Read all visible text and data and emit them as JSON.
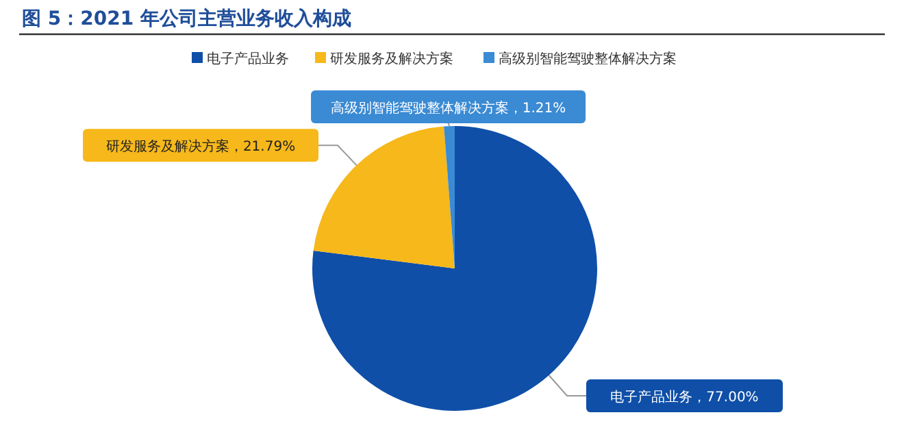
{
  "chart_data": {
    "type": "pie",
    "title": "图 5：2021 年公司主营业务收入构成",
    "categories": [
      "电子产品业务",
      "研发服务及解决方案",
      "高级别智能驾驶整体解决方案"
    ],
    "values": [
      77.0,
      21.79,
      1.21
    ],
    "colors": [
      "#0f4fa8",
      "#f6b81a",
      "#3a8ad4"
    ],
    "value_labels": [
      "电子产品业务，77.00%",
      "研发服务及解决方案，21.79%",
      "高级别智能驾驶整体解决方案，1.21%"
    ],
    "legend": "top"
  }
}
